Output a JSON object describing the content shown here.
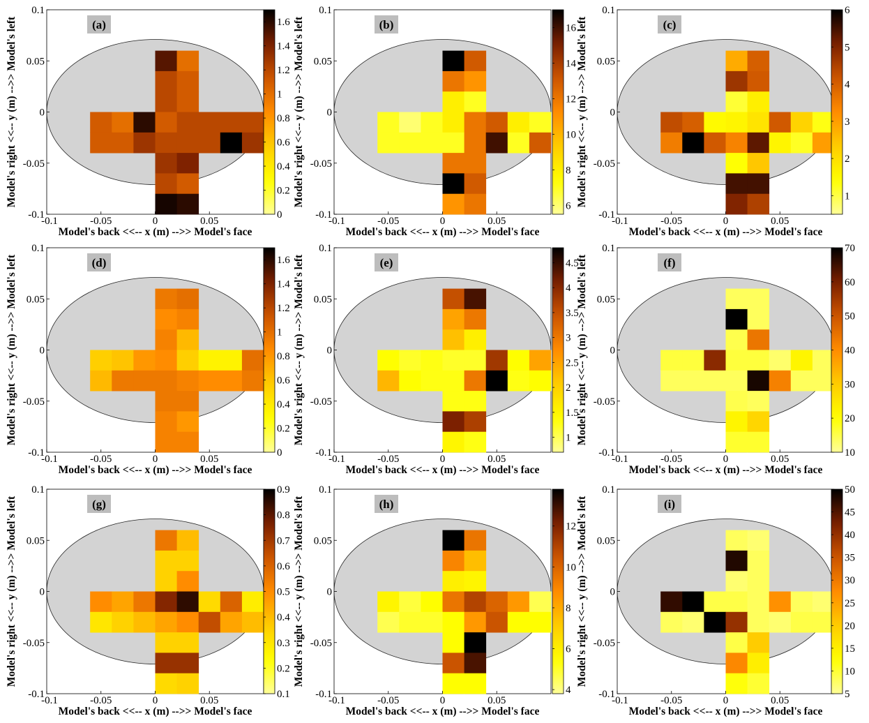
{
  "figure": {
    "xlabel": "Model's back <<-- x (m) -->> Model's face",
    "ylabel": "Model's right <<-- y (m) -->> Model's left",
    "x_ticks": [
      "-0.1",
      "-0.05",
      "0",
      "0.05"
    ],
    "y_ticks": [
      "0.1",
      "0.05",
      "0",
      "-0.05",
      "-0.1"
    ],
    "colors": {
      "background_disc": "#d3d3d3",
      "colormap": [
        "#ffff99",
        "#ffff00",
        "#ffcc00",
        "#ff8c00",
        "#cc5500",
        "#7a1f00",
        "#000000"
      ]
    }
  },
  "chart_data": [
    {
      "type": "heatmap",
      "label": "(a)",
      "x_range": [
        -0.1,
        0.1
      ],
      "y_range": [
        -0.1,
        0.1
      ],
      "colorbar": {
        "min": 0,
        "max": 1.7,
        "ticks": [
          "0",
          "0.2",
          "0.4",
          "0.6",
          "0.8",
          "1",
          "1.2",
          "1.4",
          "1.6"
        ]
      },
      "values": [
        1.5,
        1.0,
        1.2,
        1.1,
        1.2,
        1.1,
        1.1,
        1.0,
        1.6,
        1.1,
        1.2,
        1.2,
        1.2,
        1.2,
        1.1,
        1.1,
        1.3,
        1.2,
        1.2,
        1.2,
        1.7,
        1.3,
        1.3,
        1.4,
        1.2,
        1.1,
        1.65,
        1.6
      ]
    },
    {
      "type": "heatmap",
      "label": "(b)",
      "x_range": [
        -0.1,
        0.1
      ],
      "y_range": [
        -0.1,
        0.1
      ],
      "colorbar": {
        "min": 5.5,
        "max": 17,
        "ticks": [
          "6",
          "8",
          "10",
          "12",
          "14",
          "16"
        ]
      },
      "values": [
        17,
        13,
        12,
        11,
        8,
        7,
        7,
        6,
        7,
        8,
        12,
        13,
        8,
        7,
        7,
        7,
        7,
        7,
        12,
        16,
        7,
        13,
        12,
        12,
        17,
        13,
        11,
        12
      ]
    },
    {
      "type": "heatmap",
      "label": "(c)",
      "x_range": [
        -0.1,
        0.1
      ],
      "y_range": [
        -0.1,
        0.1
      ],
      "colorbar": {
        "min": 0.5,
        "max": 6,
        "ticks": [
          "1",
          "2",
          "3",
          "4",
          "5",
          "6"
        ]
      },
      "values": [
        2.8,
        4.0,
        4.7,
        4.1,
        1.1,
        1.7,
        4.3,
        4.0,
        1.5,
        1.6,
        1.9,
        4.1,
        2.2,
        1.3,
        3.5,
        6.0,
        4.1,
        3.4,
        5.3,
        1.6,
        1.2,
        3.0,
        1.4,
        2.4,
        5.5,
        5.5,
        5.0,
        4.5
      ]
    },
    {
      "type": "heatmap",
      "label": "(d)",
      "x_range": [
        -0.1,
        0.1
      ],
      "y_range": [
        -0.1,
        0.1
      ],
      "colorbar": {
        "min": 0,
        "max": 1.7,
        "ticks": [
          "0",
          "0.2",
          "0.4",
          "0.6",
          "0.8",
          "1",
          "1.2",
          "1.4",
          "1.6"
        ]
      },
      "values": [
        0.95,
        1.0,
        0.85,
        0.9,
        0.9,
        0.65,
        0.55,
        0.6,
        0.8,
        0.85,
        0.55,
        0.35,
        0.35,
        1.0,
        0.65,
        0.95,
        0.95,
        0.95,
        0.9,
        0.85,
        0.85,
        0.95,
        0.95,
        0.95,
        0.9,
        0.8,
        0.9,
        0.9
      ]
    },
    {
      "type": "heatmap",
      "label": "(e)",
      "x_range": [
        -0.1,
        0.1
      ],
      "y_range": [
        -0.1,
        0.1
      ],
      "colorbar": {
        "min": 0.7,
        "max": 4.8,
        "ticks": [
          "1",
          "1.5",
          "2",
          "2.5",
          "3",
          "3.5",
          "4",
          "4.5"
        ]
      },
      "values": [
        3.5,
        4.4,
        2.5,
        3.0,
        2.2,
        1.6,
        1.4,
        1.2,
        1.3,
        1.2,
        1.2,
        3.8,
        1.4,
        2.5,
        2.3,
        1.4,
        1.3,
        1.3,
        3.0,
        4.8,
        1.3,
        1.4,
        1.3,
        1.3,
        4.1,
        3.7,
        1.5,
        1.3
      ]
    },
    {
      "type": "heatmap",
      "label": "(f)",
      "x_range": [
        -0.1,
        0.1
      ],
      "y_range": [
        -0.1,
        0.1
      ],
      "colorbar": {
        "min": 10,
        "max": 70,
        "ticks": [
          "10",
          "20",
          "30",
          "40",
          "50",
          "60",
          "70"
        ]
      },
      "values": [
        14,
        14,
        70,
        14,
        15,
        44,
        16,
        16,
        58,
        16,
        16,
        13,
        22,
        14,
        14,
        14,
        14,
        14,
        68,
        42,
        14,
        14,
        15,
        14,
        22,
        28,
        17,
        17
      ]
    },
    {
      "type": "heatmap",
      "label": "(g)",
      "x_range": [
        -0.1,
        0.1
      ],
      "y_range": [
        -0.1,
        0.1
      ],
      "colorbar": {
        "min": 0.1,
        "max": 0.9,
        "ticks": [
          "0.1",
          "0.2",
          "0.3",
          "0.4",
          "0.5",
          "0.6",
          "0.7",
          "0.8",
          "0.9"
        ]
      },
      "values": [
        0.55,
        0.4,
        0.35,
        0.35,
        0.35,
        0.5,
        0.5,
        0.45,
        0.55,
        0.75,
        0.85,
        0.33,
        0.6,
        0.28,
        0.3,
        0.35,
        0.4,
        0.45,
        0.5,
        0.65,
        0.45,
        0.4,
        0.35,
        0.35,
        0.72,
        0.72,
        0.33,
        0.35
      ]
    },
    {
      "type": "heatmap",
      "label": "(h)",
      "x_range": [
        -0.1,
        0.1
      ],
      "y_range": [
        -0.1,
        0.1
      ],
      "colorbar": {
        "min": 3.8,
        "max": 13.8,
        "ticks": [
          "4",
          "6",
          "8",
          "10",
          "12"
        ]
      },
      "values": [
        13.8,
        9.5,
        9.0,
        7.5,
        6.0,
        5.8,
        5.8,
        4.8,
        5.5,
        9.5,
        11.0,
        10.0,
        8.5,
        4.6,
        4.6,
        5.0,
        5.0,
        5.5,
        8.5,
        10.5,
        5.5,
        5.5,
        5.5,
        13.8,
        10.5,
        12.8,
        5.5,
        5.5
      ]
    },
    {
      "type": "heatmap",
      "label": "(i)",
      "x_range": [
        -0.1,
        0.1
      ],
      "y_range": [
        -0.1,
        0.1
      ],
      "colorbar": {
        "min": 5,
        "max": 50,
        "ticks": [
          "5",
          "10",
          "15",
          "20",
          "25",
          "30",
          "35",
          "40",
          "45",
          "50"
        ]
      },
      "values": [
        8,
        7,
        48,
        8,
        7,
        8,
        47,
        50,
        9,
        9,
        8,
        27,
        8,
        7,
        8,
        7,
        50,
        40,
        8,
        7,
        9,
        9,
        9,
        20,
        28,
        15,
        12,
        10
      ]
    }
  ]
}
